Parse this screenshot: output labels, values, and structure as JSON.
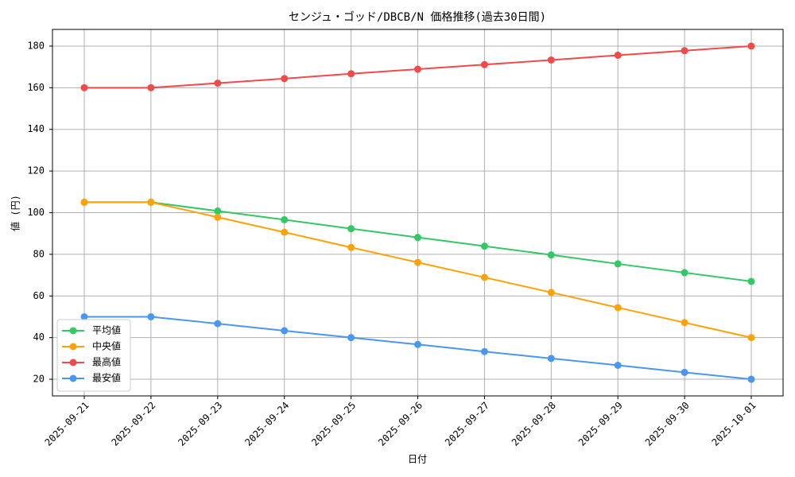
{
  "chart_data": {
    "type": "line",
    "title": "センジュ・ゴッド/DBCB/N 価格推移(過去30日間)",
    "x_label": "日付",
    "y_label": "値 (円)",
    "categories": [
      "2025-09-21",
      "2025-09-22",
      "2025-09-23",
      "2025-09-24",
      "2025-09-25",
      "2025-09-26",
      "2025-09-27",
      "2025-09-28",
      "2025-09-29",
      "2025-09-30",
      "2025-10-01"
    ],
    "series": [
      {
        "name": "平均値",
        "color": "#33c765",
        "values": [
          105,
          105,
          100.8,
          96.6,
          92.3,
          88.1,
          83.9,
          79.7,
          75.4,
          71.2,
          67
        ]
      },
      {
        "name": "中央値",
        "color": "#ffa20a",
        "values": [
          105,
          105,
          97.8,
          90.6,
          83.3,
          76.1,
          68.9,
          61.7,
          54.4,
          47.2,
          40
        ]
      },
      {
        "name": "最高値",
        "color": "#f04a4a",
        "values": [
          160,
          160,
          162.2,
          164.4,
          166.7,
          168.9,
          171.1,
          173.3,
          175.6,
          177.8,
          180
        ]
      },
      {
        "name": "最安値",
        "color": "#4a97f0",
        "values": [
          50,
          50,
          46.7,
          43.3,
          40,
          36.7,
          33.3,
          30,
          26.7,
          23.3,
          20
        ]
      }
    ],
    "ylim": [
      12,
      188
    ],
    "yticks": [
      20,
      40,
      60,
      80,
      100,
      120,
      140,
      160,
      180
    ],
    "grid": true,
    "legend": "lower left"
  }
}
